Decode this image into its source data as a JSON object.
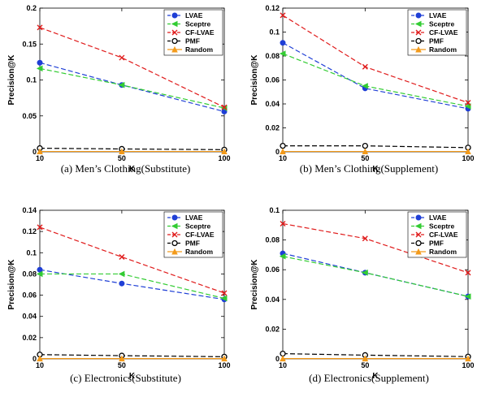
{
  "colors": {
    "LVAE": "#1f3fd6",
    "Sceptre": "#33cc33",
    "CF-LVAE": "#e01b1b",
    "PMF": "#000000",
    "Random": "#f39a1a"
  },
  "chart_data": [
    {
      "type": "line",
      "caption": "(a)  Men’s Clothing(Substitute)",
      "xlabel": "K",
      "ylabel": "Precision@K",
      "x": [
        10,
        50,
        100
      ],
      "ylim": [
        0,
        0.2
      ],
      "yticks": [
        0,
        0.05,
        0.1,
        0.15,
        0.2
      ],
      "ytick_labels": [
        "0",
        "0.05",
        "0.1",
        "0.15",
        "0.2"
      ],
      "xtick_labels": [
        "10",
        "50",
        "100"
      ],
      "legend_position": "top-right",
      "series": [
        {
          "name": "LVAE",
          "values": [
            0.124,
            0.093,
            0.056
          ]
        },
        {
          "name": "Sceptre",
          "values": [
            0.116,
            0.093,
            0.061
          ]
        },
        {
          "name": "CF-LVAE",
          "values": [
            0.173,
            0.131,
            0.062
          ]
        },
        {
          "name": "PMF",
          "values": [
            0.005,
            0.004,
            0.003
          ]
        },
        {
          "name": "Random",
          "values": [
            0.0005,
            0.0005,
            0.0005
          ]
        }
      ]
    },
    {
      "type": "line",
      "caption": "(b)  Men’s Clothing(Supplement)",
      "xlabel": "K",
      "ylabel": "Precision@K",
      "x": [
        10,
        50,
        100
      ],
      "ylim": [
        0,
        0.12
      ],
      "yticks": [
        0,
        0.02,
        0.04,
        0.06,
        0.08,
        0.1,
        0.12
      ],
      "ytick_labels": [
        "0",
        "0.02",
        "0.04",
        "0.06",
        "0.08",
        "0.1",
        "0.12"
      ],
      "xtick_labels": [
        "10",
        "50",
        "100"
      ],
      "legend_position": "top-right",
      "series": [
        {
          "name": "LVAE",
          "values": [
            0.091,
            0.053,
            0.036
          ]
        },
        {
          "name": "Sceptre",
          "values": [
            0.082,
            0.055,
            0.038
          ]
        },
        {
          "name": "CF-LVAE",
          "values": [
            0.114,
            0.071,
            0.041
          ]
        },
        {
          "name": "PMF",
          "values": [
            0.005,
            0.005,
            0.0035
          ]
        },
        {
          "name": "Random",
          "values": [
            0.0003,
            0.0003,
            0.0003
          ]
        }
      ]
    },
    {
      "type": "line",
      "caption": "(c)  Electronics(Substitute)",
      "xlabel": "K",
      "ylabel": "Precision@K",
      "x": [
        10,
        50,
        100
      ],
      "ylim": [
        0,
        0.14
      ],
      "yticks": [
        0,
        0.02,
        0.04,
        0.06,
        0.08,
        0.1,
        0.12,
        0.14
      ],
      "ytick_labels": [
        "0",
        "0.02",
        "0.04",
        "0.06",
        "0.08",
        "0.1",
        "0.12",
        "0.14"
      ],
      "xtick_labels": [
        "10",
        "50",
        "100"
      ],
      "legend_position": "top-right",
      "series": [
        {
          "name": "LVAE",
          "values": [
            0.084,
            0.071,
            0.056
          ]
        },
        {
          "name": "Sceptre",
          "values": [
            0.08,
            0.08,
            0.057
          ]
        },
        {
          "name": "CF-LVAE",
          "values": [
            0.124,
            0.096,
            0.062
          ]
        },
        {
          "name": "PMF",
          "values": [
            0.004,
            0.003,
            0.002
          ]
        },
        {
          "name": "Random",
          "values": [
            0.0003,
            0.0003,
            0.0003
          ]
        }
      ]
    },
    {
      "type": "line",
      "caption": "(d)  Electronics(Supplement)",
      "xlabel": "K",
      "ylabel": "Precision@K",
      "x": [
        10,
        50,
        100
      ],
      "ylim": [
        0,
        0.1
      ],
      "yticks": [
        0,
        0.02,
        0.04,
        0.06,
        0.08,
        0.1
      ],
      "ytick_labels": [
        "0",
        "0.02",
        "0.04",
        "0.06",
        "0.08",
        "0.1"
      ],
      "xtick_labels": [
        "10",
        "50",
        "100"
      ],
      "legend_position": "top-right",
      "series": [
        {
          "name": "LVAE",
          "values": [
            0.071,
            0.058,
            0.042
          ]
        },
        {
          "name": "Sceptre",
          "values": [
            0.069,
            0.058,
            0.042
          ]
        },
        {
          "name": "CF-LVAE",
          "values": [
            0.091,
            0.081,
            0.058
          ]
        },
        {
          "name": "PMF",
          "values": [
            0.0035,
            0.0025,
            0.0015
          ]
        },
        {
          "name": "Random",
          "values": [
            0.0002,
            0.0002,
            0.0002
          ]
        }
      ]
    }
  ]
}
